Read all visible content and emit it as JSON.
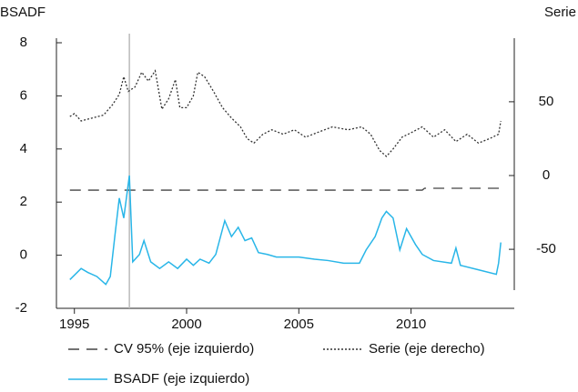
{
  "chart_data": {
    "type": "line",
    "y_label": "BSADF",
    "y2_label": "Serie",
    "xlim": [
      1994.2,
      2014.6
    ],
    "xticks": [
      1995,
      2000,
      2005,
      2010
    ],
    "ylim": [
      -2,
      8
    ],
    "yticks": [
      -2,
      0,
      2,
      4,
      6,
      8
    ],
    "y2lim": [
      -90,
      90
    ],
    "y2ticks": [
      -50,
      0,
      50
    ],
    "vline": 1997.45,
    "vline_color": "#bbbbbb",
    "series": [
      {
        "name": "CV 95% (eje izquierdo)",
        "color": "#444444",
        "style": "dashed",
        "x": [
          1994.8,
          2010.5,
          2010.6,
          2014.0
        ],
        "values": [
          2.45,
          2.45,
          2.52,
          2.52
        ]
      },
      {
        "name": "Serie (eje derecho)",
        "color": "#333333",
        "style": "dotted",
        "axis": "y2",
        "x": [
          1994.8,
          1995.0,
          1995.3,
          1995.8,
          1996.3,
          1996.7,
          1997.0,
          1997.2,
          1997.4,
          1997.7,
          1998.0,
          1998.3,
          1998.6,
          1998.9,
          1999.2,
          1999.5,
          1999.7,
          2000.0,
          2000.3,
          2000.5,
          2000.8,
          2001.2,
          2001.6,
          2002.0,
          2002.4,
          2002.7,
          2003.0,
          2003.4,
          2003.8,
          2004.3,
          2004.8,
          2005.3,
          2005.8,
          2006.5,
          2007.2,
          2007.8,
          2008.2,
          2008.6,
          2008.9,
          2009.2,
          2009.6,
          2010.0,
          2010.5,
          2011.0,
          2011.5,
          2012.0,
          2012.5,
          2013.0,
          2013.5,
          2013.9,
          2014.0
        ],
        "values": [
          40,
          42,
          37,
          39,
          41,
          48,
          55,
          67,
          57,
          60,
          70,
          64,
          71,
          45,
          52,
          65,
          46,
          46,
          54,
          70,
          67,
          57,
          46,
          39,
          33,
          25,
          22,
          28,
          31,
          28,
          31,
          26,
          29,
          33,
          31,
          33,
          28,
          17,
          13,
          18,
          26,
          29,
          33,
          26,
          31,
          23,
          28,
          22,
          25,
          28,
          37
        ]
      },
      {
        "name": "BSADF (eje izquierdo)",
        "color": "#29b6e8",
        "style": "solid",
        "x": [
          1994.8,
          1995.3,
          1995.6,
          1996.0,
          1996.4,
          1996.6,
          1996.8,
          1997.0,
          1997.2,
          1997.45,
          1997.6,
          1997.9,
          1998.1,
          1998.4,
          1998.8,
          1999.2,
          1999.6,
          2000.0,
          2000.3,
          2000.6,
          2001.0,
          2001.3,
          2001.7,
          2002.0,
          2002.3,
          2002.6,
          2002.9,
          2003.2,
          2003.6,
          2004.0,
          2005.0,
          2005.7,
          2006.3,
          2007.0,
          2007.7,
          2008.0,
          2008.4,
          2008.7,
          2008.9,
          2009.2,
          2009.5,
          2009.8,
          2010.2,
          2010.5,
          2011.0,
          2011.8,
          2012.0,
          2012.2,
          2013.0,
          2013.8,
          2013.9,
          2014.0
        ],
        "values": [
          -0.92,
          -0.5,
          -0.65,
          -0.8,
          -1.1,
          -0.8,
          0.7,
          2.15,
          1.4,
          3.0,
          -0.25,
          0.03,
          0.55,
          -0.25,
          -0.5,
          -0.25,
          -0.5,
          -0.15,
          -0.38,
          -0.15,
          -0.3,
          0.03,
          1.3,
          0.7,
          1.05,
          0.55,
          0.65,
          0.1,
          0.03,
          -0.07,
          -0.07,
          -0.15,
          -0.2,
          -0.3,
          -0.3,
          0.2,
          0.7,
          1.4,
          1.65,
          1.4,
          0.2,
          1.0,
          0.4,
          0.03,
          -0.2,
          -0.3,
          0.27,
          -0.38,
          -0.55,
          -0.72,
          -0.3,
          0.48
        ]
      }
    ]
  }
}
